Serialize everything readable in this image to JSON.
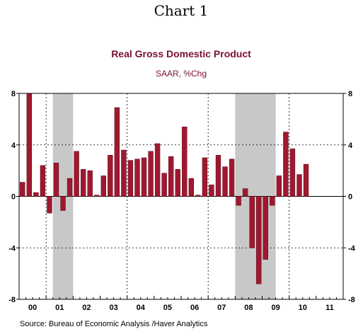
{
  "figure": {
    "label": "Chart 1",
    "source": "Source:  Bureau of Economic Analysis /Haver Analytics"
  },
  "chart_data": {
    "type": "bar",
    "title": "Real Gross Domestic Product",
    "subtitle": "SAAR, %Chg",
    "xlabel": "",
    "ylabel": "",
    "ylim": [
      -8,
      8
    ],
    "yticks": [
      8,
      4,
      0,
      -4,
      -8
    ],
    "ytick_labels": [
      "8",
      "4",
      "0",
      "-4",
      "-8"
    ],
    "grid": "dashed",
    "bar_color": "#a01830",
    "recession_color": "#c8c8c8",
    "year_labels": [
      "00",
      "01",
      "02",
      "03",
      "04",
      "05",
      "06",
      "07",
      "08",
      "09",
      "10",
      "11"
    ],
    "quarters_per_year": 4,
    "values": [
      1.1,
      8.0,
      0.3,
      2.4,
      -1.3,
      2.6,
      -1.1,
      1.4,
      3.5,
      2.1,
      2.0,
      0.1,
      1.6,
      3.2,
      6.9,
      3.6,
      2.8,
      2.9,
      3.0,
      3.5,
      4.1,
      1.8,
      3.1,
      2.1,
      5.4,
      1.4,
      0.1,
      3.0,
      0.9,
      3.2,
      2.3,
      2.9,
      -0.7,
      0.6,
      -4.0,
      -6.8,
      -4.9,
      -0.7,
      1.6,
      5.0,
      3.7,
      1.7,
      2.5
    ],
    "recessions": [
      {
        "start_quarter": 5,
        "end_quarter": 8
      },
      {
        "start_quarter": 32,
        "end_quarter": 38
      }
    ]
  }
}
